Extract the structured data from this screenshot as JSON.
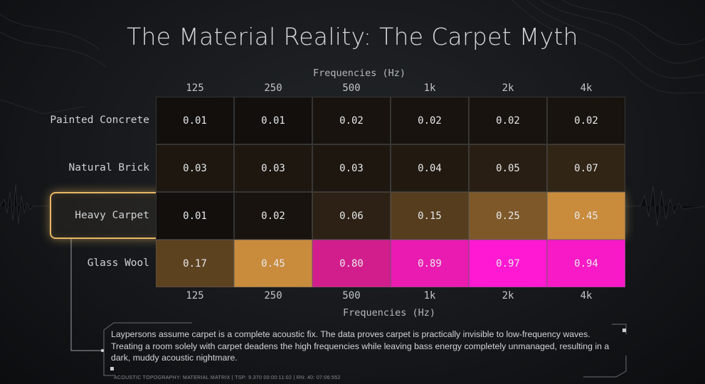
{
  "title": "The Material Reality: The Carpet Myth",
  "note": "Laypersons assume carpet is a complete acoustic fix. The data proves carpet is practically invisible to low-frequency waves. Treating a room solely with carpet deadens the high frequencies while leaving bass energy completely unmanaged, resulting in a dark, muddy acoustic nightmare.",
  "footer": "ACOUSTIC TOPOGRAPHY: MATERIAL MATRIX  |  TSP: 9.370  00:00:11:02  |  RN: 40: 07:06:552",
  "colors": {
    "highlight": "#e8b865",
    "low": "#0a0a0b",
    "mid": "#c98b3c",
    "high": "#ff19d2"
  },
  "chart_data": {
    "type": "heatmap",
    "title": "The Material Reality: The Carpet Myth",
    "xlabel": "Frequencies (Hz)",
    "ylabel": "",
    "x": [
      "125",
      "250",
      "500",
      "1k",
      "2k",
      "4k"
    ],
    "y": [
      "Painted Concrete",
      "Natural Brick",
      "Heavy Carpet",
      "Glass Wool"
    ],
    "values": [
      [
        "0.01",
        "0.01",
        "0.02",
        "0.02",
        "0.02",
        "0.02"
      ],
      [
        "0.03",
        "0.03",
        "0.03",
        "0.04",
        "0.05",
        "0.07"
      ],
      [
        "0.01",
        "0.02",
        "0.06",
        "0.15",
        "0.25",
        "0.45"
      ],
      [
        "0.17",
        "0.45",
        "0.80",
        "0.89",
        "0.97",
        "0.94"
      ]
    ],
    "highlighted_row": "Heavy Carpet",
    "axis_top": true,
    "axis_bottom": true
  }
}
